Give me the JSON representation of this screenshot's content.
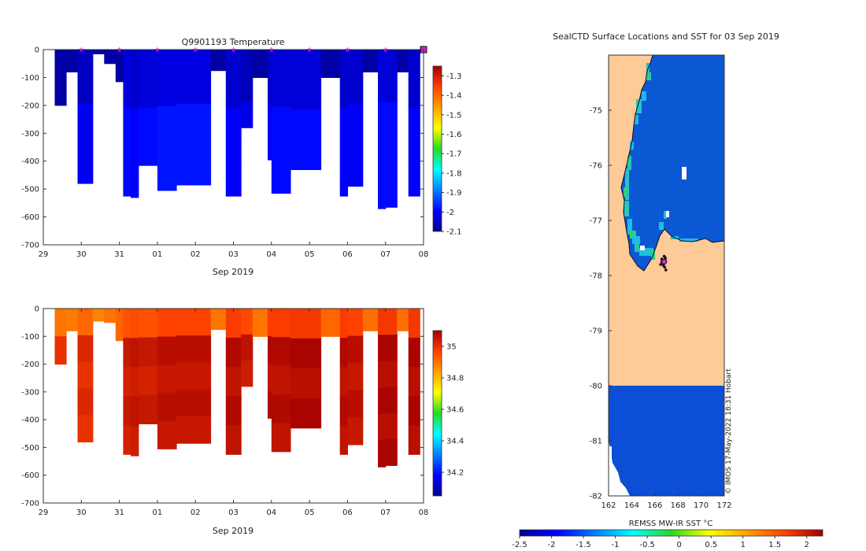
{
  "chart_data": [
    {
      "id": "temperature",
      "type": "heatmap",
      "title": "Q9901193  Temperature",
      "xlabel": "Sep 2019",
      "ylabel": "",
      "x_ticks": [
        "29",
        "30",
        "31",
        "01",
        "02",
        "03",
        "04",
        "05",
        "06",
        "07",
        "08"
      ],
      "x_tick_days": [
        29,
        30,
        31,
        32,
        33,
        34,
        35,
        36,
        37,
        38,
        39
      ],
      "xlim": [
        29,
        39
      ],
      "ylim": [
        -700,
        0
      ],
      "y_ticks": [
        0,
        -100,
        -200,
        -300,
        -400,
        -500,
        -600,
        -700
      ],
      "colorbar": {
        "min": -2.1,
        "max": -1.25,
        "ticks": [
          -1.3,
          -1.4,
          -1.5,
          -1.6,
          -1.7,
          -1.8,
          -1.9,
          -2,
          -2.1
        ]
      },
      "profile_markers": [
        30,
        31,
        32,
        33,
        34,
        35,
        36,
        37,
        38,
        39
      ],
      "profiles": [
        {
          "start": 29.3,
          "end": 29.6,
          "depth": 200,
          "v": -2.08
        },
        {
          "start": 29.6,
          "end": 29.9,
          "depth": 80,
          "v": -2.08
        },
        {
          "start": 29.9,
          "end": 30.3,
          "depth": 480,
          "v": -2.05
        },
        {
          "start": 30.3,
          "end": 30.6,
          "depth": 15,
          "v": -2.08
        },
        {
          "start": 30.6,
          "end": 30.9,
          "depth": 50,
          "v": -2.08
        },
        {
          "start": 30.9,
          "end": 31.1,
          "depth": 115,
          "v": -2.08
        },
        {
          "start": 31.1,
          "end": 31.3,
          "depth": 525,
          "v": -2.03
        },
        {
          "start": 31.3,
          "end": 31.5,
          "depth": 530,
          "v": -2.04
        },
        {
          "start": 31.5,
          "end": 32.0,
          "depth": 415,
          "v": -2.03
        },
        {
          "start": 32.0,
          "end": 32.5,
          "depth": 505,
          "v": -2.02
        },
        {
          "start": 32.5,
          "end": 33.4,
          "depth": 485,
          "v": -2.02
        },
        {
          "start": 33.4,
          "end": 33.8,
          "depth": 75,
          "v": -2.08
        },
        {
          "start": 33.8,
          "end": 34.2,
          "depth": 525,
          "v": -2.04
        },
        {
          "start": 34.2,
          "end": 34.5,
          "depth": 280,
          "v": -2.06
        },
        {
          "start": 34.5,
          "end": 34.9,
          "depth": 100,
          "v": -2.08
        },
        {
          "start": 34.9,
          "end": 35.0,
          "depth": 395,
          "v": -2.04
        },
        {
          "start": 35.0,
          "end": 35.5,
          "depth": 515,
          "v": -2.03
        },
        {
          "start": 35.5,
          "end": 36.3,
          "depth": 430,
          "v": -2.03
        },
        {
          "start": 36.3,
          "end": 36.8,
          "depth": 100,
          "v": -2.08
        },
        {
          "start": 36.8,
          "end": 37.0,
          "depth": 525,
          "v": -2.04
        },
        {
          "start": 37.0,
          "end": 37.4,
          "depth": 490,
          "v": -2.04
        },
        {
          "start": 37.4,
          "end": 37.8,
          "depth": 80,
          "v": -2.08
        },
        {
          "start": 37.8,
          "end": 38.0,
          "depth": 570,
          "v": -2.03
        },
        {
          "start": 38.0,
          "end": 38.3,
          "depth": 565,
          "v": -2.03
        },
        {
          "start": 38.3,
          "end": 38.6,
          "depth": 80,
          "v": -2.08
        },
        {
          "start": 38.6,
          "end": 38.9,
          "depth": 525,
          "v": -2.04
        }
      ]
    },
    {
      "id": "salinity",
      "type": "heatmap",
      "title": "",
      "xlabel": "Sep 2019",
      "ylabel": "",
      "x_ticks": [
        "29",
        "30",
        "31",
        "01",
        "02",
        "03",
        "04",
        "05",
        "06",
        "07",
        "08"
      ],
      "x_tick_days": [
        29,
        30,
        31,
        32,
        33,
        34,
        35,
        36,
        37,
        38,
        39
      ],
      "xlim": [
        29,
        39
      ],
      "ylim": [
        -700,
        0
      ],
      "y_ticks": [
        0,
        -100,
        -200,
        -300,
        -400,
        -500,
        -600,
        -700
      ],
      "colorbar": {
        "min": 34.05,
        "max": 35.1,
        "ticks": [
          35,
          34.8,
          34.6,
          34.4,
          34.2
        ]
      },
      "profiles": [
        {
          "start": 29.3,
          "end": 29.6,
          "depth": 200,
          "v": 34.98
        },
        {
          "start": 29.6,
          "end": 29.9,
          "depth": 80,
          "v": 34.97
        },
        {
          "start": 29.9,
          "end": 30.3,
          "depth": 480,
          "v": 35.0
        },
        {
          "start": 30.3,
          "end": 30.6,
          "depth": 45,
          "v": 34.96
        },
        {
          "start": 30.6,
          "end": 30.9,
          "depth": 50,
          "v": 34.98
        },
        {
          "start": 30.9,
          "end": 31.1,
          "depth": 115,
          "v": 35.0
        },
        {
          "start": 31.1,
          "end": 31.3,
          "depth": 525,
          "v": 35.03
        },
        {
          "start": 31.3,
          "end": 31.5,
          "depth": 530,
          "v": 35.04
        },
        {
          "start": 31.5,
          "end": 32.0,
          "depth": 415,
          "v": 35.03
        },
        {
          "start": 32.0,
          "end": 32.5,
          "depth": 505,
          "v": 35.05
        },
        {
          "start": 32.5,
          "end": 33.4,
          "depth": 485,
          "v": 35.05
        },
        {
          "start": 33.4,
          "end": 33.8,
          "depth": 75,
          "v": 34.98
        },
        {
          "start": 33.8,
          "end": 34.2,
          "depth": 525,
          "v": 35.06
        },
        {
          "start": 34.2,
          "end": 34.5,
          "depth": 280,
          "v": 35.04
        },
        {
          "start": 34.5,
          "end": 34.9,
          "depth": 100,
          "v": 34.98
        },
        {
          "start": 34.9,
          "end": 35.0,
          "depth": 395,
          "v": 35.06
        },
        {
          "start": 35.0,
          "end": 35.5,
          "depth": 515,
          "v": 35.06
        },
        {
          "start": 35.5,
          "end": 36.3,
          "depth": 430,
          "v": 35.07
        },
        {
          "start": 36.3,
          "end": 36.8,
          "depth": 100,
          "v": 35.0
        },
        {
          "start": 36.8,
          "end": 37.0,
          "depth": 525,
          "v": 35.06
        },
        {
          "start": 37.0,
          "end": 37.4,
          "depth": 490,
          "v": 35.05
        },
        {
          "start": 37.4,
          "end": 37.8,
          "depth": 80,
          "v": 34.99
        },
        {
          "start": 37.8,
          "end": 38.0,
          "depth": 570,
          "v": 35.07
        },
        {
          "start": 38.0,
          "end": 38.3,
          "depth": 565,
          "v": 35.07
        },
        {
          "start": 38.3,
          "end": 38.6,
          "depth": 80,
          "v": 34.99
        },
        {
          "start": 38.6,
          "end": 38.9,
          "depth": 525,
          "v": 35.07
        }
      ]
    },
    {
      "id": "sst-map",
      "type": "heatmap",
      "title": "SealCTD Surface Locations and SST for 03 Sep 2019",
      "xlim": [
        162,
        172
      ],
      "ylim": [
        -82,
        -74
      ],
      "x_ticks": [
        162,
        164,
        166,
        168,
        170,
        172
      ],
      "y_ticks": [
        -75,
        -76,
        -77,
        -78,
        -79,
        -80,
        -81,
        -82
      ],
      "land_color": "#fdca98",
      "ocean_color": "#0a58d4",
      "cold_patch_color": "#0c4fd6",
      "land_boundary_lat": -80,
      "seal_track": [
        [
          166.8,
          -77.65
        ],
        [
          166.6,
          -77.7
        ],
        [
          166.9,
          -77.72
        ],
        [
          166.7,
          -77.78
        ],
        [
          166.5,
          -77.8
        ],
        [
          166.85,
          -77.85
        ],
        [
          166.95,
          -77.9
        ],
        [
          166.6,
          -77.75
        ],
        [
          166.75,
          -77.82
        ],
        [
          166.9,
          -77.68
        ]
      ],
      "seal_current": [
        166.8,
        -77.75
      ],
      "colorbar": {
        "label": "REMSS MW-IR SST °C",
        "min": -2.5,
        "max": 2.25,
        "ticks": [
          "-2.5",
          "-2",
          "-1.5",
          "-1",
          "-0.5",
          "0",
          "0.5",
          "1",
          "1.5",
          "2"
        ],
        "tick_values": [
          -2.5,
          -2,
          -1.5,
          -1,
          -0.5,
          0,
          0.5,
          1,
          1.5,
          2
        ]
      },
      "credit": "© IMOS 17-May-2022 18:31 Hobart"
    }
  ]
}
